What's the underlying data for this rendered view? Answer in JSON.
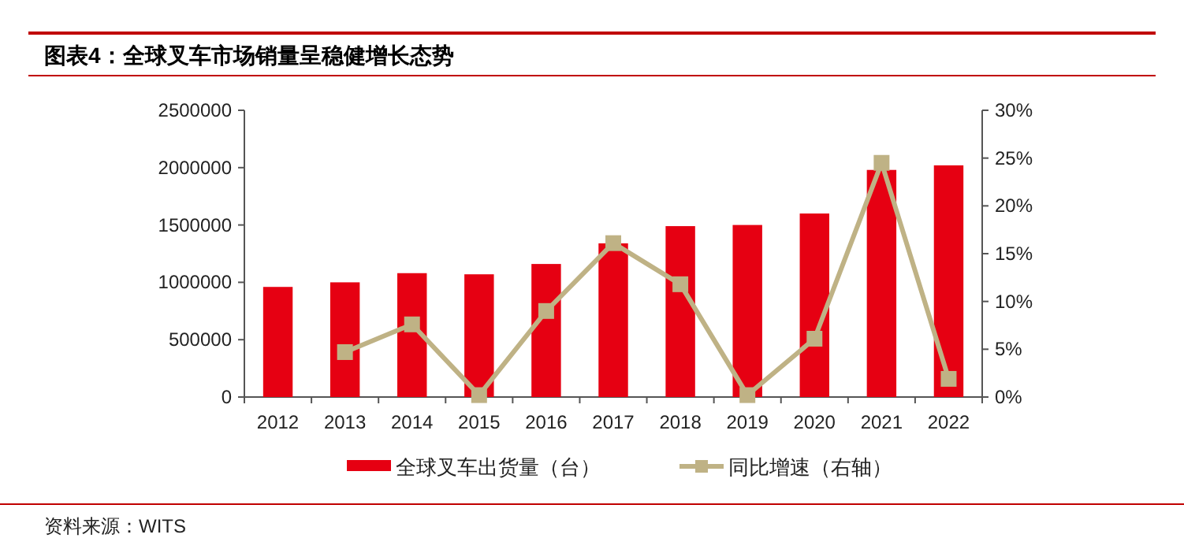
{
  "chart_data": {
    "type": "bar",
    "title": "图表4：全球叉车市场销量呈稳健增长态势",
    "categories": [
      "2012",
      "2013",
      "2014",
      "2015",
      "2016",
      "2017",
      "2018",
      "2019",
      "2020",
      "2021",
      "2022"
    ],
    "series": [
      {
        "name": "全球叉车出货量（台）",
        "color": "#e60012",
        "values": [
          960000,
          1000000,
          1080000,
          1070000,
          1160000,
          1340000,
          1490000,
          1500000,
          1600000,
          1980000,
          2020000
        ]
      },
      {
        "name": "同比增速（右轴）",
        "type": "line",
        "axis": "y2",
        "color": "#bfb285",
        "marker": "square",
        "values": [
          null,
          4.7,
          7.6,
          0.2,
          9.0,
          16.1,
          11.8,
          0.2,
          6.1,
          24.5,
          1.9
        ]
      }
    ],
    "ylim": [
      0,
      2500000
    ],
    "yticks": [
      0,
      500000,
      1000000,
      1500000,
      2000000,
      2500000
    ],
    "y2lim": [
      0,
      30
    ],
    "y2ticks": [
      {
        "value": 0,
        "label": "0%"
      },
      {
        "value": 5,
        "label": "5%"
      },
      {
        "value": 10,
        "label": "10%"
      },
      {
        "value": 15,
        "label": "15%"
      },
      {
        "value": 20,
        "label": "20%"
      },
      {
        "value": 25,
        "label": "25%"
      },
      {
        "value": 30,
        "label": "30%"
      }
    ],
    "grid": false,
    "legend": "bottom",
    "annotations": [
      "资料来源：WITS"
    ]
  }
}
